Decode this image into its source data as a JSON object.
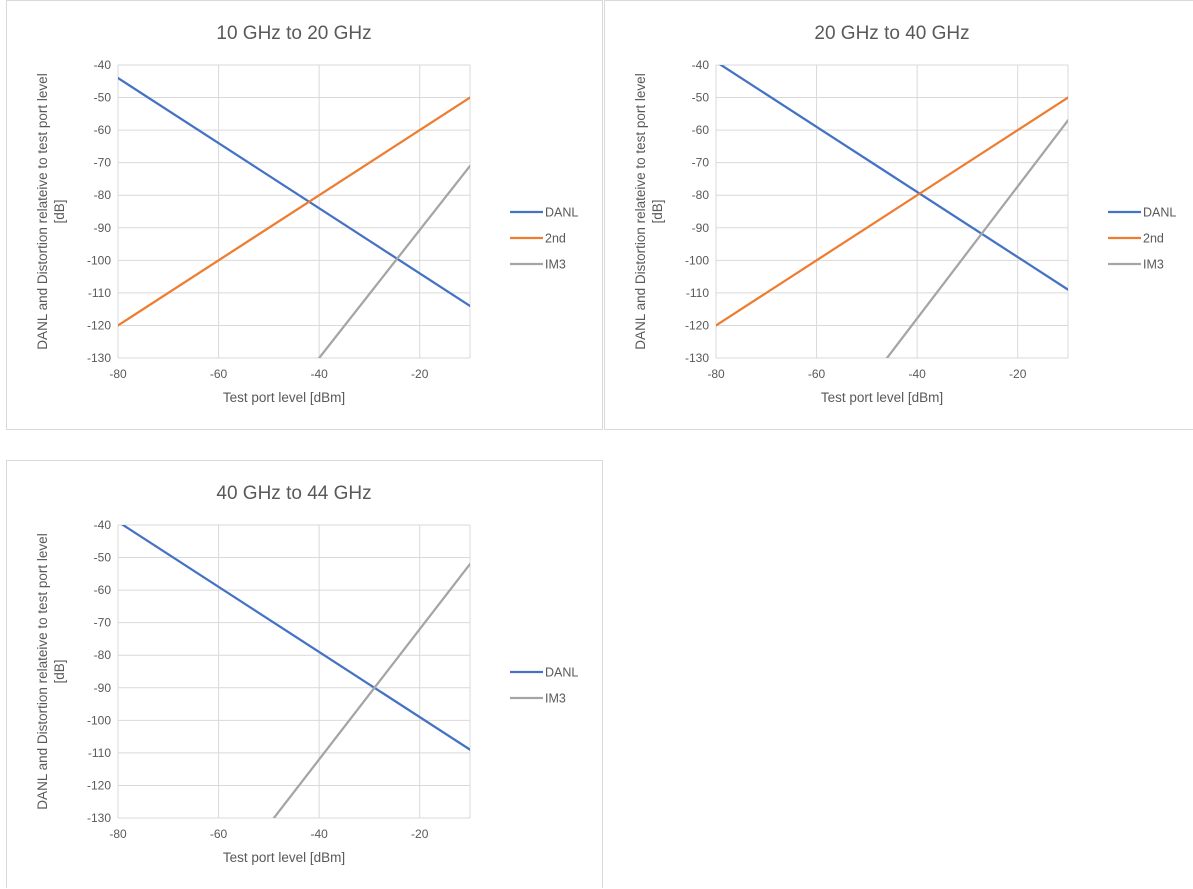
{
  "chart_data": [
    {
      "type": "line",
      "title": "10 GHz to 20 GHz",
      "xlabel": "Test port level [dBm]",
      "ylabel": "DANL and Distortion relateive to test port level [dB]",
      "xlim": [
        -80,
        -10
      ],
      "ylim": [
        -130,
        -40
      ],
      "xticks": [
        "-80",
        "-60",
        "-40",
        "-20"
      ],
      "yticks": [
        "-40",
        "-50",
        "-60",
        "-70",
        "-80",
        "-90",
        "-100",
        "-110",
        "-120",
        "-130"
      ],
      "grid": true,
      "legend": "right",
      "series": [
        {
          "name": "DANL",
          "color": "#4472C4",
          "x": [
            -80,
            -10
          ],
          "y": [
            -44,
            -114
          ]
        },
        {
          "name": "2nd",
          "color": "#ED7D31",
          "x": [
            -80,
            -10
          ],
          "y": [
            -120,
            -50
          ]
        },
        {
          "name": "IM3",
          "color": "#A5A5A5",
          "x": [
            -40,
            -10
          ],
          "y": [
            -130,
            -71
          ]
        }
      ]
    },
    {
      "type": "line",
      "title": "20 GHz to 40 GHz",
      "xlabel": "Test port level [dBm]",
      "ylabel": "DANL and Distortion relateive to test port level [dB]",
      "xlim": [
        -80,
        -10
      ],
      "ylim": [
        -130,
        -40
      ],
      "xticks": [
        "-80",
        "-60",
        "-40",
        "-20"
      ],
      "yticks": [
        "-40",
        "-50",
        "-60",
        "-70",
        "-80",
        "-90",
        "-100",
        "-110",
        "-120",
        "-130"
      ],
      "grid": true,
      "legend": "right",
      "series": [
        {
          "name": "DANL",
          "color": "#4472C4",
          "x": [
            -80,
            -10
          ],
          "y": [
            -39,
            -109
          ]
        },
        {
          "name": "2nd",
          "color": "#ED7D31",
          "x": [
            -80,
            -10
          ],
          "y": [
            -120,
            -50
          ]
        },
        {
          "name": "IM3",
          "color": "#A5A5A5",
          "x": [
            -46,
            -10
          ],
          "y": [
            -130,
            -57
          ]
        }
      ]
    },
    {
      "type": "line",
      "title": "40 GHz to 44 GHz",
      "xlabel": "Test port level [dBm]",
      "ylabel": "DANL and Distortion relateive to test port level [dB]",
      "xlim": [
        -80,
        -10
      ],
      "ylim": [
        -130,
        -40
      ],
      "xticks": [
        "-80",
        "-60",
        "-40",
        "-20"
      ],
      "yticks": [
        "-40",
        "-50",
        "-60",
        "-70",
        "-80",
        "-90",
        "-100",
        "-110",
        "-120",
        "-130"
      ],
      "grid": true,
      "legend": "right",
      "series": [
        {
          "name": "DANL",
          "color": "#4472C4",
          "x": [
            -80,
            -10
          ],
          "y": [
            -39,
            -109
          ]
        },
        {
          "name": "IM3",
          "color": "#A5A5A5",
          "x": [
            -49,
            -10
          ],
          "y": [
            -130,
            -52
          ]
        }
      ]
    }
  ]
}
